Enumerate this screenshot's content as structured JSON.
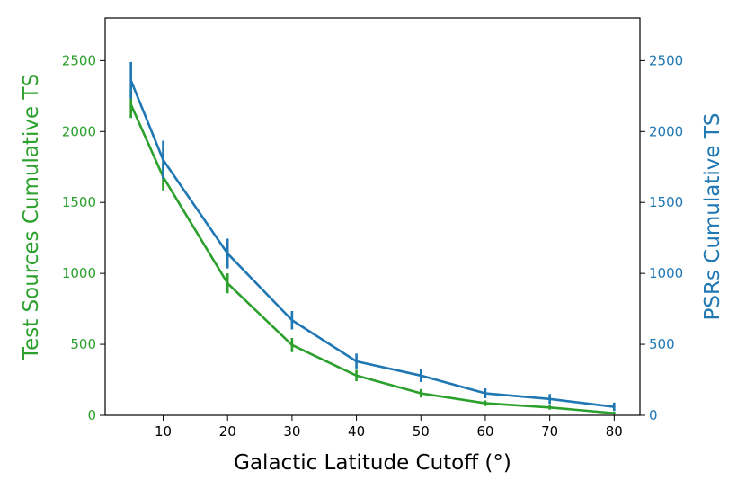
{
  "chart_data": {
    "type": "line",
    "xlabel": "Galactic Latitude Cutoff (°)",
    "ylabel_left": "Test Sources Cumulative TS",
    "ylabel_right": "PSRs Cumulative TS",
    "xlim": [
      1,
      84
    ],
    "ylim": [
      0,
      2800
    ],
    "x_ticks": [
      10,
      20,
      30,
      40,
      50,
      60,
      70,
      80
    ],
    "y_ticks": [
      0,
      500,
      1000,
      1500,
      2000,
      2500
    ],
    "grid": false,
    "x": [
      5,
      10,
      20,
      30,
      40,
      50,
      60,
      70,
      80
    ],
    "series": [
      {
        "name": "Test Sources Cumulative TS",
        "axis": "left",
        "color": "#2ca02c",
        "values": [
          2190,
          1680,
          930,
          495,
          280,
          155,
          85,
          55,
          15
        ],
        "errors": [
          95,
          95,
          70,
          50,
          40,
          30,
          20,
          15,
          10
        ]
      },
      {
        "name": "PSRs Cumulative TS",
        "axis": "right",
        "color": "#1f77b4",
        "values": [
          2360,
          1800,
          1140,
          670,
          380,
          280,
          155,
          115,
          60
        ],
        "errors": [
          130,
          135,
          105,
          65,
          55,
          45,
          35,
          35,
          30
        ]
      }
    ]
  }
}
